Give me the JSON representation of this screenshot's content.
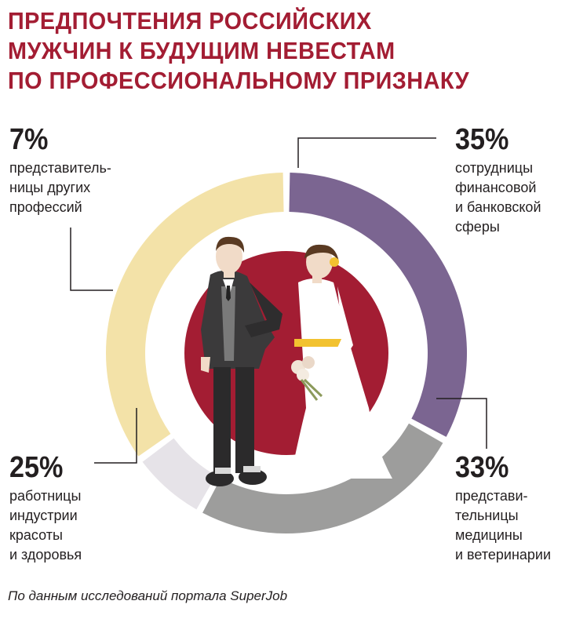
{
  "title_lines": [
    "ПРЕДПОЧТЕНИЯ РОССИЙСКИХ",
    "МУЖЧИН К БУДУЩИМ НЕВЕСТАМ",
    "ПО ПРОФЕССИОНАЛЬНОМУ ПРИЗНАКУ"
  ],
  "source": "По данным исследований портала SuperJob",
  "colors": {
    "title": "#a31d33",
    "center_circle": "#a31d33",
    "finance": "#f3e2a8",
    "medicine": "#7b6591",
    "beauty": "#9d9d9c",
    "other": "#e6e3e8"
  },
  "chart_data": {
    "type": "pie",
    "variant": "donut",
    "unit": "%",
    "slices": [
      {
        "value": 35,
        "label": "35%",
        "desc_lines": [
          "сотрудницы",
          "финансовой",
          "и банковской",
          "сферы"
        ],
        "color": "#f3e2a8"
      },
      {
        "value": 33,
        "label": "33%",
        "desc_lines": [
          "представи-",
          "тельницы",
          "медицины",
          "и ветеринарии"
        ],
        "color": "#7b6591"
      },
      {
        "value": 25,
        "label": "25%",
        "desc_lines": [
          "работницы",
          "индустрии",
          "красоты",
          "и здоровья"
        ],
        "color": "#9d9d9c"
      },
      {
        "value": 7,
        "label": "7%",
        "desc_lines": [
          "представитель-",
          "ницы других",
          "профессий"
        ],
        "color": "#e6e3e8"
      }
    ]
  }
}
